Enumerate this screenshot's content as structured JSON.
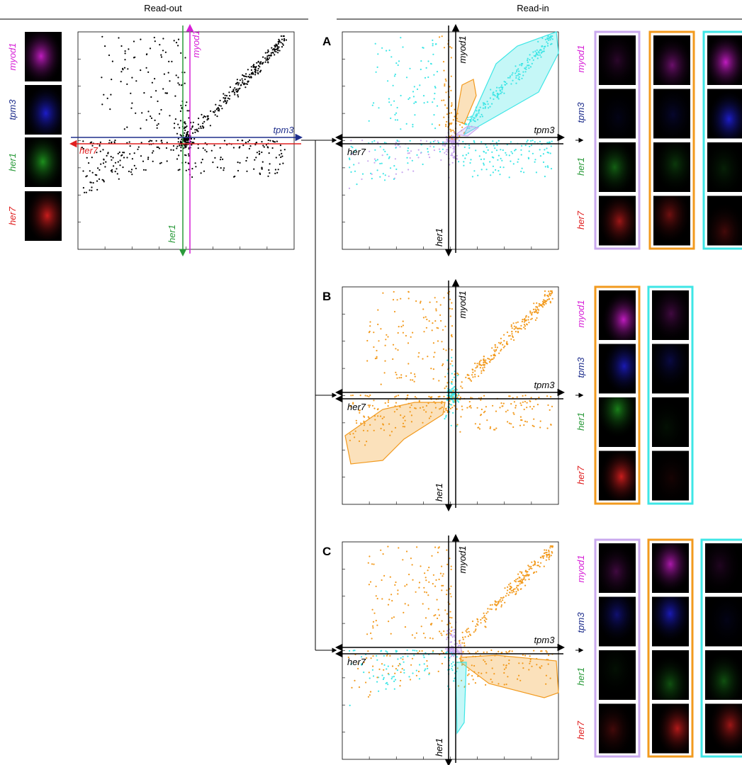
{
  "readout": {
    "title": "Read-out",
    "axes": {
      "up": "myod1",
      "right": "tpm3",
      "left": "her7",
      "down": "her1"
    },
    "channels": [
      "myod1",
      "tpm3",
      "her1",
      "her7"
    ]
  },
  "readin": {
    "title": "Read-in",
    "panels": [
      {
        "label": "A",
        "axes": {
          "up": "myod1",
          "right": "tpm3",
          "left": "her7",
          "down": "her1"
        },
        "channels": [
          "myod1",
          "tpm3",
          "her1",
          "her7"
        ]
      },
      {
        "label": "B",
        "axes": {
          "up": "myod1",
          "right": "tpm3",
          "left": "her7",
          "down": "her1"
        },
        "channels": [
          "myod1",
          "tpm3",
          "her1",
          "her7"
        ]
      },
      {
        "label": "C",
        "axes": {
          "up": "myod1",
          "right": "tpm3",
          "left": "her7",
          "down": "her1"
        },
        "channels": [
          "myod1",
          "tpm3",
          "her1",
          "her7"
        ]
      }
    ]
  }
}
